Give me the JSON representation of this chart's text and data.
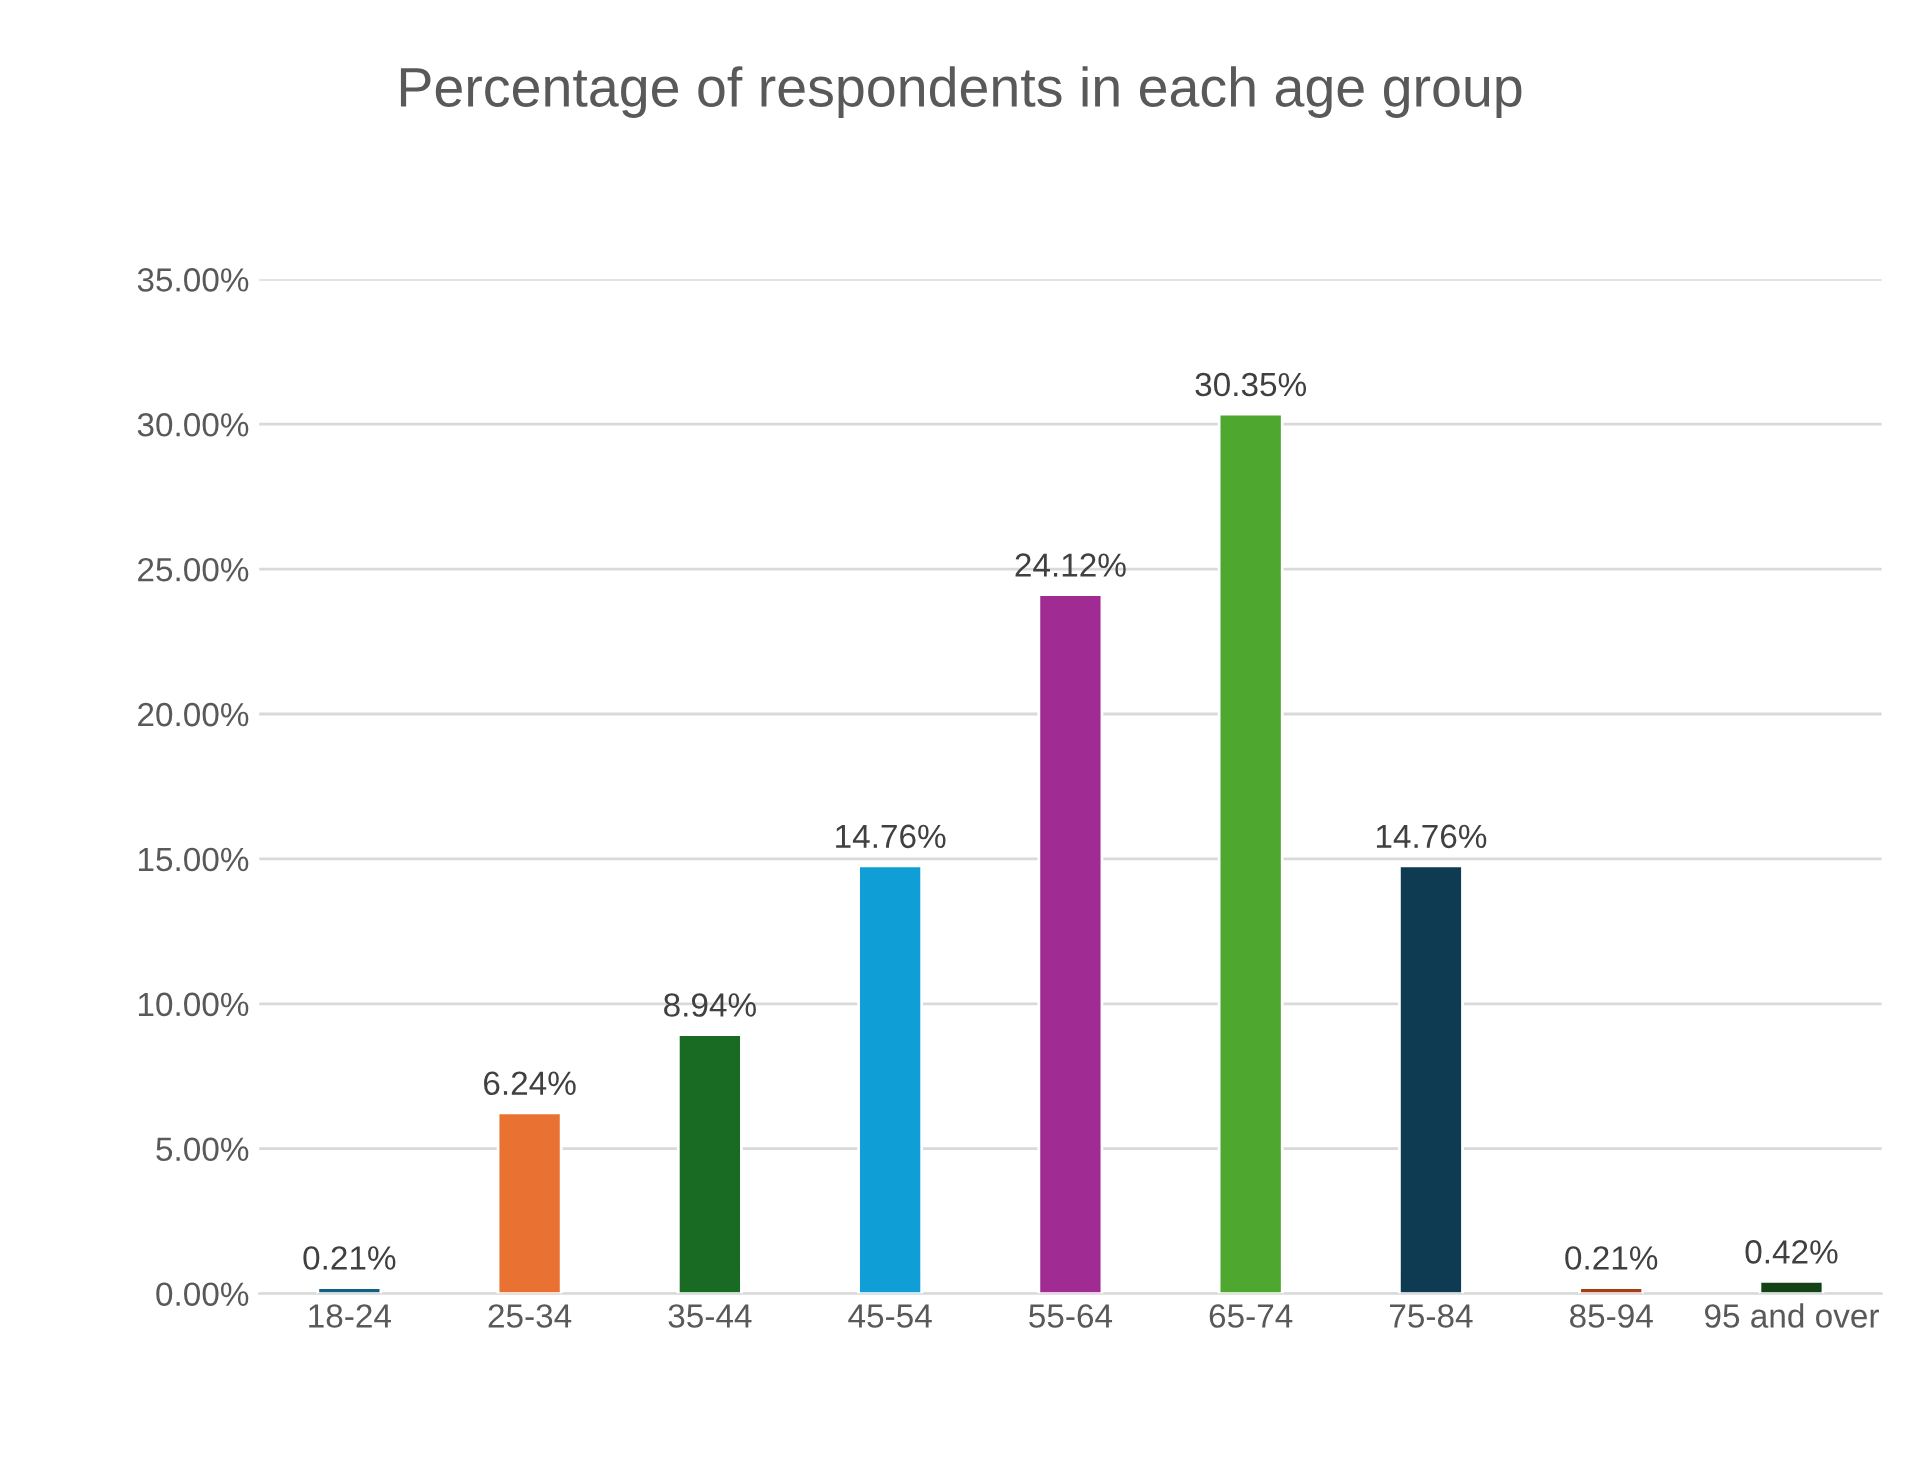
{
  "chart_data": {
    "type": "bar",
    "title": "Percentage of respondents in each age group",
    "categories": [
      "18-24",
      "25-34",
      "35-44",
      "45-54",
      "55-64",
      "65-74",
      "75-84",
      "85-94",
      "95 and over"
    ],
    "values": [
      0.21,
      6.24,
      8.94,
      14.76,
      24.12,
      30.35,
      14.76,
      0.21,
      0.42
    ],
    "colors": [
      "#156082",
      "#e97132",
      "#196b24",
      "#0f9ed5",
      "#a02b93",
      "#4ea72e",
      "#0e3a52",
      "#a33d16",
      "#124216"
    ],
    "value_labels": [
      "0.21%",
      "6.24%",
      "8.94%",
      "14.76%",
      "24.12%",
      "30.35%",
      "14.76%",
      "0.21%",
      "0.42%"
    ],
    "ylim": [
      0,
      35
    ],
    "yticks": [
      {
        "value": 0,
        "label": "0.00%"
      },
      {
        "value": 5,
        "label": "5.00%"
      },
      {
        "value": 10,
        "label": "10.00%"
      },
      {
        "value": 15,
        "label": "15.00%"
      },
      {
        "value": 20,
        "label": "20.00%"
      },
      {
        "value": 25,
        "label": "25.00%"
      },
      {
        "value": 30,
        "label": "30.00%"
      },
      {
        "value": 35,
        "label": "35.00%"
      }
    ],
    "grid": "y"
  }
}
